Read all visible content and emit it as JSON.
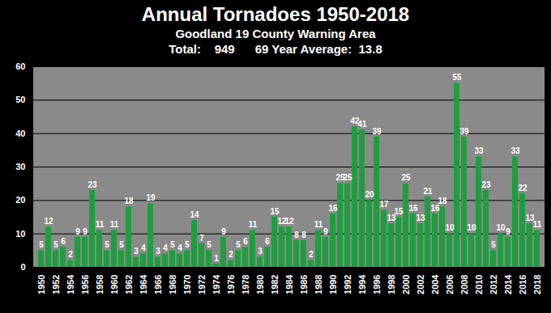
{
  "chart_data": {
    "type": "bar",
    "title": "Annual Tornadoes 1950-2018",
    "subtitle": "Goodland 19 County Warning Area",
    "annotation": "Total:    949      69 Year Average:  13.8",
    "categories": [
      "1950",
      null,
      "1952",
      null,
      "1954",
      null,
      "1956",
      null,
      "1958",
      null,
      "1960",
      null,
      "1962",
      null,
      "1964",
      null,
      "1966",
      null,
      "1968",
      null,
      "1970",
      null,
      "1972",
      null,
      "1974",
      null,
      "1976",
      null,
      "1978",
      null,
      "1980",
      null,
      "1982",
      null,
      "1984",
      null,
      "1986",
      null,
      "1988",
      null,
      "1990",
      null,
      "1992",
      null,
      "1994",
      null,
      "1996",
      null,
      "1998",
      null,
      "2000",
      null,
      "2002",
      null,
      "2004",
      null,
      "2006",
      null,
      "2008",
      null,
      "2010",
      null,
      "2012",
      null,
      "2014",
      null,
      "2016",
      null,
      "2018"
    ],
    "values": [
      5,
      12,
      5,
      6,
      2,
      9,
      9,
      23,
      11,
      5,
      11,
      5,
      18,
      3,
      4,
      19,
      3,
      4,
      5,
      4,
      5,
      14,
      7,
      5,
      1,
      9,
      2,
      5,
      6,
      11,
      3,
      6,
      15,
      12,
      12,
      8,
      8,
      2,
      11,
      9,
      16,
      25,
      25,
      42,
      41,
      20,
      39,
      17,
      13,
      15,
      25,
      16,
      13,
      21,
      16,
      18,
      10,
      55,
      39,
      10,
      33,
      23,
      5,
      10,
      9,
      33,
      22,
      13,
      11
    ],
    "color": "#1f9e3f",
    "ylim": [
      0,
      60
    ],
    "yticks": [
      0,
      10,
      20,
      30,
      40,
      50,
      60
    ],
    "grid": true,
    "data_labels": true
  }
}
